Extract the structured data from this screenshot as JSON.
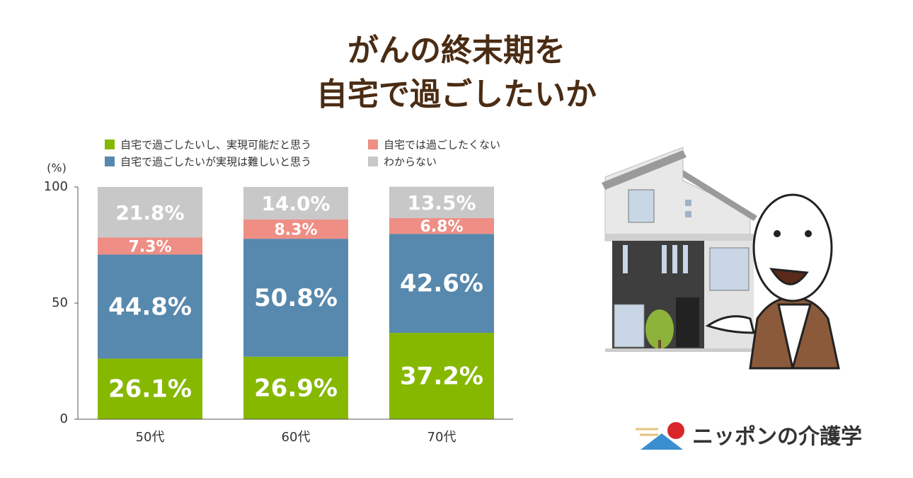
{
  "chart_data": {
    "type": "stacked_bar",
    "title": [
      "がんの終末期を",
      "自宅で過ごしたいか"
    ],
    "y_unit": "(%)",
    "categories": [
      "50代",
      "60代",
      "70代"
    ],
    "series": [
      {
        "name": "自宅で過ごしたいし、実現可能だと思う",
        "color": "#86b800",
        "values": [
          26.1,
          26.9,
          37.2
        ],
        "value_labels": [
          "26.1%",
          "26.9%",
          "37.2%"
        ]
      },
      {
        "name": "自宅で過ごしたいが実現は難しいと思う",
        "color": "#5788ad",
        "values": [
          44.8,
          50.8,
          42.6
        ],
        "value_labels": [
          "44.8%",
          "50.8%",
          "42.6%"
        ]
      },
      {
        "name": "自宅では過ごしたくない",
        "color": "#ee8e85",
        "values": [
          7.3,
          8.3,
          6.8
        ],
        "value_labels": [
          "7.3%",
          "8.3%",
          "6.8%"
        ]
      },
      {
        "name": "わからない",
        "color": "#c8c8c8",
        "values": [
          21.8,
          14.0,
          13.5
        ],
        "value_labels": [
          "21.8%",
          "14.0%",
          "13.5%"
        ]
      }
    ],
    "ylim": [
      0,
      100
    ],
    "yticks": [
      0,
      50,
      100
    ]
  },
  "brand": "ニッポンの介護学"
}
